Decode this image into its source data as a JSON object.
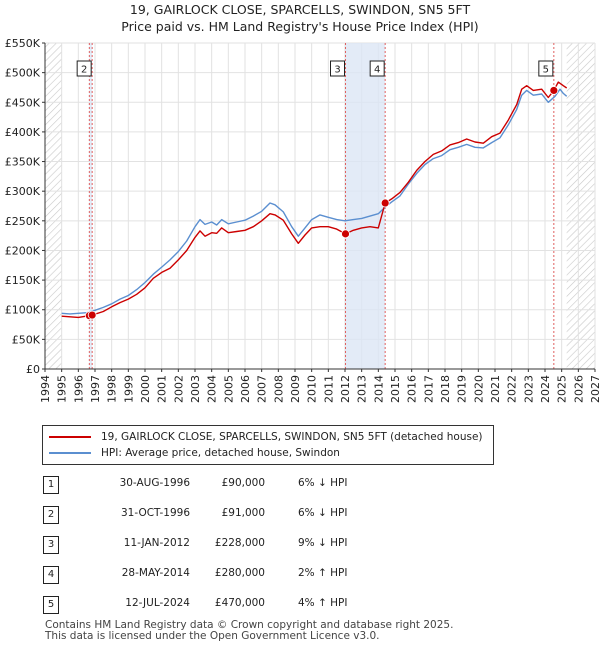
{
  "header": {
    "title": "19, GAIRLOCK CLOSE, SPARCELLS, SWINDON, SN5 5FT",
    "subtitle": "Price paid vs. HM Land Registry's House Price Index (HPI)"
  },
  "chart_data": {
    "type": "line",
    "title": "19, GAIRLOCK CLOSE, SPARCELLS, SWINDON, SN5 5FT",
    "subtitle": "Price paid vs. HM Land Registry's House Price Index (HPI)",
    "xlabel": "",
    "ylabel": "",
    "xlim": [
      1994,
      2027
    ],
    "ylim": [
      0,
      550000
    ],
    "x_ticks": [
      "1994",
      "1995",
      "1996",
      "1997",
      "1998",
      "1999",
      "2000",
      "2001",
      "2002",
      "2003",
      "2004",
      "2005",
      "2006",
      "2007",
      "2008",
      "2009",
      "2010",
      "2011",
      "2012",
      "2013",
      "2014",
      "2015",
      "2016",
      "2017",
      "2018",
      "2019",
      "2020",
      "2021",
      "2022",
      "2023",
      "2024",
      "2025",
      "2026",
      "2027"
    ],
    "y_ticks": [
      "£0",
      "£50K",
      "£100K",
      "£150K",
      "£200K",
      "£250K",
      "£300K",
      "£350K",
      "£400K",
      "£450K",
      "£500K",
      "£550K"
    ],
    "data_start": 1995.0,
    "data_end": 2025.3,
    "future_hatch_from": 2025.3,
    "series": [
      {
        "name": "19, GAIRLOCK CLOSE, SPARCELLS, SWINDON, SN5 5FT (detached house)",
        "color": "#cc0000",
        "points": [
          [
            1995.0,
            89000
          ],
          [
            1995.5,
            88000
          ],
          [
            1996.0,
            87000
          ],
          [
            1996.66,
            90000
          ],
          [
            1996.83,
            91000
          ],
          [
            1997.5,
            97000
          ],
          [
            1998.0,
            105000
          ],
          [
            1998.5,
            112000
          ],
          [
            1999.0,
            118000
          ],
          [
            1999.5,
            126000
          ],
          [
            2000.0,
            137000
          ],
          [
            2000.5,
            153000
          ],
          [
            2001.0,
            163000
          ],
          [
            2001.5,
            170000
          ],
          [
            2002.0,
            184000
          ],
          [
            2002.5,
            200000
          ],
          [
            2003.0,
            222000
          ],
          [
            2003.3,
            233000
          ],
          [
            2003.6,
            224000
          ],
          [
            2004.0,
            230000
          ],
          [
            2004.3,
            229000
          ],
          [
            2004.6,
            238000
          ],
          [
            2005.0,
            230000
          ],
          [
            2005.5,
            232000
          ],
          [
            2006.0,
            234000
          ],
          [
            2006.5,
            240000
          ],
          [
            2007.0,
            250000
          ],
          [
            2007.5,
            262000
          ],
          [
            2007.8,
            260000
          ],
          [
            2008.3,
            251000
          ],
          [
            2008.8,
            228000
          ],
          [
            2009.2,
            212000
          ],
          [
            2009.6,
            226000
          ],
          [
            2010.0,
            238000
          ],
          [
            2010.5,
            240000
          ],
          [
            2011.0,
            240000
          ],
          [
            2011.5,
            236000
          ],
          [
            2012.03,
            228000
          ],
          [
            2012.5,
            234000
          ],
          [
            2013.0,
            238000
          ],
          [
            2013.5,
            240000
          ],
          [
            2014.0,
            238000
          ],
          [
            2014.41,
            280000
          ],
          [
            2014.8,
            287000
          ],
          [
            2015.3,
            298000
          ],
          [
            2015.8,
            315000
          ],
          [
            2016.3,
            335000
          ],
          [
            2016.8,
            350000
          ],
          [
            2017.3,
            362000
          ],
          [
            2017.8,
            368000
          ],
          [
            2018.3,
            378000
          ],
          [
            2018.8,
            382000
          ],
          [
            2019.3,
            388000
          ],
          [
            2019.8,
            383000
          ],
          [
            2020.3,
            381000
          ],
          [
            2020.8,
            392000
          ],
          [
            2021.3,
            398000
          ],
          [
            2021.8,
            420000
          ],
          [
            2022.3,
            446000
          ],
          [
            2022.6,
            472000
          ],
          [
            2022.9,
            478000
          ],
          [
            2023.3,
            470000
          ],
          [
            2023.8,
            472000
          ],
          [
            2024.2,
            458000
          ],
          [
            2024.53,
            470000
          ],
          [
            2024.8,
            484000
          ],
          [
            2025.1,
            478000
          ],
          [
            2025.3,
            474000
          ]
        ]
      },
      {
        "name": "HPI: Average price, detached house, Swindon",
        "color": "#5b8fd0",
        "points": [
          [
            1995.0,
            94000
          ],
          [
            1995.5,
            93000
          ],
          [
            1996.0,
            94000
          ],
          [
            1996.5,
            95000
          ],
          [
            1997.0,
            99000
          ],
          [
            1997.5,
            104000
          ],
          [
            1998.0,
            110000
          ],
          [
            1998.5,
            118000
          ],
          [
            1999.0,
            124000
          ],
          [
            1999.5,
            134000
          ],
          [
            2000.0,
            146000
          ],
          [
            2000.5,
            160000
          ],
          [
            2001.0,
            172000
          ],
          [
            2001.5,
            184000
          ],
          [
            2002.0,
            198000
          ],
          [
            2002.5,
            216000
          ],
          [
            2003.0,
            240000
          ],
          [
            2003.3,
            252000
          ],
          [
            2003.6,
            244000
          ],
          [
            2004.0,
            248000
          ],
          [
            2004.3,
            243000
          ],
          [
            2004.6,
            252000
          ],
          [
            2005.0,
            245000
          ],
          [
            2005.5,
            248000
          ],
          [
            2006.0,
            251000
          ],
          [
            2006.5,
            258000
          ],
          [
            2007.0,
            266000
          ],
          [
            2007.5,
            280000
          ],
          [
            2007.8,
            277000
          ],
          [
            2008.3,
            265000
          ],
          [
            2008.8,
            240000
          ],
          [
            2009.2,
            224000
          ],
          [
            2009.6,
            238000
          ],
          [
            2010.0,
            252000
          ],
          [
            2010.5,
            260000
          ],
          [
            2011.0,
            256000
          ],
          [
            2011.5,
            252000
          ],
          [
            2012.0,
            250000
          ],
          [
            2012.5,
            252000
          ],
          [
            2013.0,
            254000
          ],
          [
            2013.5,
            258000
          ],
          [
            2014.0,
            262000
          ],
          [
            2014.4,
            273000
          ],
          [
            2014.8,
            282000
          ],
          [
            2015.3,
            292000
          ],
          [
            2015.8,
            312000
          ],
          [
            2016.3,
            330000
          ],
          [
            2016.8,
            345000
          ],
          [
            2017.3,
            355000
          ],
          [
            2017.8,
            360000
          ],
          [
            2018.3,
            370000
          ],
          [
            2018.8,
            374000
          ],
          [
            2019.3,
            379000
          ],
          [
            2019.8,
            374000
          ],
          [
            2020.3,
            373000
          ],
          [
            2020.8,
            382000
          ],
          [
            2021.3,
            390000
          ],
          [
            2021.8,
            412000
          ],
          [
            2022.3,
            438000
          ],
          [
            2022.6,
            462000
          ],
          [
            2022.9,
            470000
          ],
          [
            2023.3,
            462000
          ],
          [
            2023.8,
            464000
          ],
          [
            2024.2,
            450000
          ],
          [
            2024.6,
            460000
          ],
          [
            2024.9,
            472000
          ],
          [
            2025.1,
            465000
          ],
          [
            2025.3,
            460000
          ]
        ]
      }
    ],
    "sales": [
      {
        "label": "1",
        "x": 1996.66,
        "price": 90000
      },
      {
        "label": "2",
        "x": 1996.83,
        "price": 91000
      },
      {
        "label": "3",
        "x": 2012.03,
        "price": 228000
      },
      {
        "label": "4",
        "x": 2014.41,
        "price": 280000
      },
      {
        "label": "5",
        "x": 2024.53,
        "price": 470000
      }
    ],
    "chart_labels": [
      "2",
      "3",
      "4",
      "5"
    ],
    "highlight_bands": [
      [
        1996.66,
        1996.83
      ],
      [
        2012.03,
        2014.41
      ]
    ]
  },
  "legend": {
    "property_label": "19, GAIRLOCK CLOSE, SPARCELLS, SWINDON, SN5 5FT (detached house)",
    "hpi_label": "HPI: Average price, detached house, Swindon",
    "property_color": "#cc0000",
    "hpi_color": "#5b8fd0"
  },
  "transactions": [
    {
      "num": "1",
      "date": "30-AUG-1996",
      "price": "£90,000",
      "hpi": "6% ↓ HPI"
    },
    {
      "num": "2",
      "date": "31-OCT-1996",
      "price": "£91,000",
      "hpi": "6% ↓ HPI"
    },
    {
      "num": "3",
      "date": "11-JAN-2012",
      "price": "£228,000",
      "hpi": "9% ↓ HPI"
    },
    {
      "num": "4",
      "date": "28-MAY-2014",
      "price": "£280,000",
      "hpi": "2% ↑ HPI"
    },
    {
      "num": "5",
      "date": "12-JUL-2024",
      "price": "£470,000",
      "hpi": "4% ↑ HPI"
    }
  ],
  "footer": {
    "line1": "Contains HM Land Registry data © Crown copyright and database right 2025.",
    "line2": "This data is licensed under the Open Government Licence v3.0."
  }
}
